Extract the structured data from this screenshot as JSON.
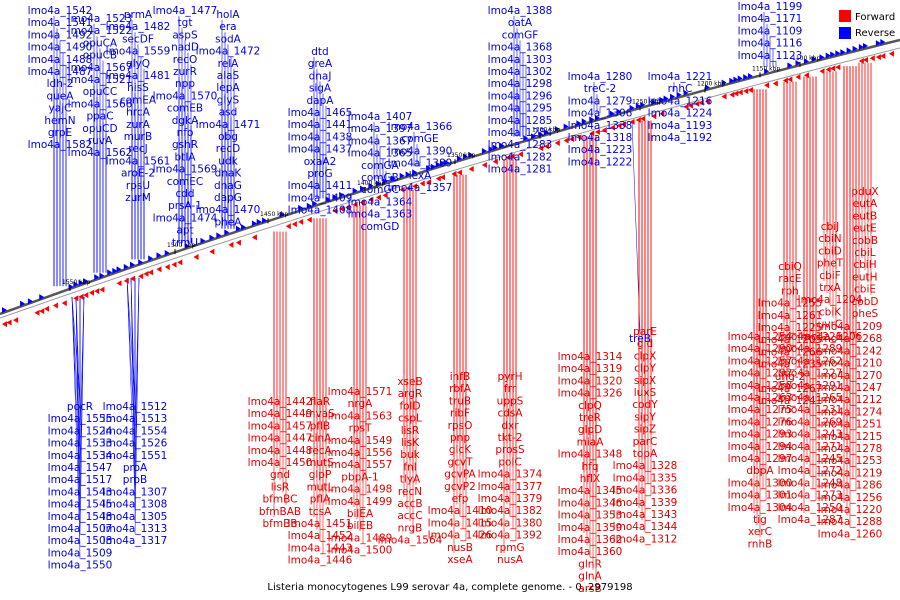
{
  "caption": "Listeria monocytogenes L99 serovar 4a, complete genome. - 0..2979198",
  "legend": {
    "forward_label": "Forward",
    "reverse_label": "Reverse",
    "forward_color": "#ff0000",
    "reverse_color": "#0000ff"
  },
  "colors": {
    "backbone": "#555555",
    "tick": "#000000"
  },
  "ticks": [
    "1100 kbp",
    "1150 kbp",
    "1200 kbp",
    "1250 kbp",
    "1300 kbp",
    "1350 kbp",
    "1400 kbp",
    "1450 kbp",
    "1500 kbp",
    "1550 kbp"
  ],
  "reverse_labels": [
    "lmo4a_1542",
    "lmo4a_1541",
    "lmo4a_1492",
    "lmo4a_1490",
    "lmo4a_1488",
    "lmo4a_1487",
    "ldh-2",
    "queA",
    "yajC",
    "hemN",
    "grpE",
    "lmo4a_1582",
    "lmo4a_1523",
    "lmo4a_1522",
    "opuCA",
    "opuCB",
    "lmo4a_1567",
    "lmo4a_1521",
    "opuCC",
    "lmo4a_1566",
    "ppaC",
    "opuCD",
    "ruvA",
    "lmo4a_1562",
    "prmA",
    "lmo4a_1482",
    "secDF",
    "lmo4a_1559",
    "glyQ",
    "lmo4a_1481",
    "hisS",
    "comEA",
    "hrcA",
    "zurA",
    "murB",
    "recJ",
    "lmo4a_1561",
    "aroE-2",
    "rpsU",
    "zurM",
    "lmo4a_1477",
    "tgt",
    "aspS",
    "nadD",
    "recO",
    "zurR",
    "npp",
    "lmo4a_1570",
    "comEB",
    "dgkA",
    "nfo",
    "gshR",
    "btlA",
    "lmo4a_1569",
    "comEC",
    "cdd",
    "prsA-1",
    "lmo4a_1474",
    "apt",
    "trmU",
    "holA",
    "era",
    "sodA",
    "lmo4a_1472",
    "relA",
    "alaS",
    "lepA",
    "glyS",
    "asd",
    "lmo4a_1471",
    "obg",
    "recD",
    "udk",
    "dnaK",
    "dnaG",
    "dapG",
    "lmo4a_1470",
    "pheA",
    "dtd",
    "greA",
    "dnaJ",
    "sigA",
    "dapA",
    "lmo4a_1465",
    "lmo4a_1441",
    "lmo4a_1438",
    "lmo4a_1437",
    "oxaA2",
    "proG",
    "lmo4a_1411",
    "lmo4a_1409",
    "lmo4a_1408",
    "lmo4a_1407",
    "lmo4a_1397",
    "lmo4a_1367",
    "lmo4a_1365",
    "comGA",
    "comGB",
    "comGC",
    "lmo4a_1364",
    "lmo4a_1363",
    "comGD",
    "lmo4a_1366",
    "comGE",
    "lmo4a_1390",
    "lmo4a_1389",
    "lexA",
    "lmo4a_1357",
    "lmo4a_1388",
    "oatA",
    "comGF",
    "lmo4a_1368",
    "lmo4a_1303",
    "lmo4a_1302",
    "lmo4a_1298",
    "lmo4a_1296",
    "lmo4a_1295",
    "lmo4a_1285",
    "lmo4a_1284",
    "lmo4a_1283",
    "lmo4a_1282",
    "lmo4a_1281",
    "lmo4a_1280",
    "treC-2",
    "lmo4a_1279",
    "lmo4a_1306",
    "lmo4a_1338",
    "lmo4a_1318",
    "lmo4a_1223",
    "lmo4a_1222",
    "lmo4a_1221",
    "rnhC",
    "lmo4a_1216",
    "lmo4a_1224",
    "lmo4a_1193",
    "lmo4a_1192",
    "lmo4a_1199",
    "lmo4a_1171",
    "lmo4a_1109",
    "lmo4a_1116",
    "lmo4a_1123",
    "pocR",
    "lmo4a_1555",
    "lmo4a_1524",
    "lmo4a_1533",
    "lmo4a_1534",
    "lmo4a_1547",
    "lmo4a_1517",
    "lmo4a_1543",
    "lmo4a_1545",
    "lmo4a_1548",
    "lmo4a_1507",
    "lmo4a_1508",
    "lmo4a_1509",
    "lmo4a_1550",
    "lmo4a_1512",
    "lmo4a_1513",
    "lmo4a_1554",
    "lmo4a_1526",
    "lmo4a_1551",
    "proA",
    "proB",
    "lmo4a_1307",
    "lmo4a_1308",
    "lmo4a_1305",
    "lmo4a_1313",
    "lmo4a_1317",
    "treB"
  ],
  "forward_labels": [
    "pduX",
    "eutA",
    "eutB",
    "eutE",
    "cobB",
    "cbiL",
    "cbiH",
    "eutH",
    "cbiE",
    "cobD",
    "pheS",
    "cbiJ",
    "cbiN",
    "cbiD",
    "pheT",
    "cbiF",
    "trxA",
    "lmo4a_1204",
    "cbiK",
    "uvrC",
    "lmo4a_1206",
    "cbiQ",
    "racE",
    "rph",
    "lmo4a_1255",
    "lmo4a_1261",
    "lmo4a_1225",
    "lmo4a_1205",
    "lmo4a_1266",
    "lmo4a_1235",
    "ung-2",
    "lmo4a_1267",
    "lmo4a_1241",
    "lmo4a_1209",
    "lmo4a_1268",
    "lmo4a_1242",
    "lmo4a_1210",
    "lmo4a_1270",
    "lmo4a_1247",
    "lmo4a_1212",
    "lmo4a_1274",
    "lmo4a_1251",
    "lmo4a_1215",
    "lmo4a_1278",
    "lmo4a_1253",
    "lmo4a_1219",
    "lmo4a_1286",
    "lmo4a_1256",
    "lmo4a_1220",
    "lmo4a_1288",
    "lmo4a_1260",
    "lmo4a_1226",
    "lmo4a_1289",
    "lmo4a_1262",
    "lmo4a_1227",
    "lmo4a_1291",
    "lmo4a_1265",
    "lmo4a_1231",
    "lmo4a_1269",
    "lmo4a_1243",
    "lmo4a_1271",
    "lmo4a_1245",
    "lmo4a_1272",
    "lmo4a_1248",
    "lmo4a_1273",
    "lmo4a_1250",
    "lmo4a_1287",
    "lmo4a_1254",
    "lmo4a_1290",
    "lmo4a_1257",
    "lmo4a_1292",
    "lmo4a_1258",
    "lmo4a_1263",
    "lmo4a_1275",
    "lmo4a_1276",
    "lmo4a_1293",
    "lmo4a_1294",
    "lmo4a_1297",
    "dbpA",
    "lmo4a_1300",
    "lmo4a_1301",
    "lmo4a_1304",
    "tig",
    "xerC",
    "rnhB",
    "parE",
    "gid",
    "clpX",
    "clpY",
    "sipX",
    "luxS",
    "codY",
    "sipY",
    "sipZ",
    "parC",
    "topA",
    "lmo4a_1328",
    "lmo4a_1335",
    "lmo4a_1336",
    "lmo4a_1339",
    "lmo4a_1343",
    "lmo4a_1344",
    "lmo4a_1312",
    "lmo4a_1314",
    "lmo4a_1319",
    "lmo4a_1320",
    "lmo4a_1326",
    "clpQ",
    "treR",
    "glpD",
    "miaA",
    "lmo4a_1348",
    "hfq",
    "hflX",
    "lmo4a_1345",
    "lmo4a_1346",
    "lmo4a_1353",
    "lmo4a_1359",
    "lmo4a_1362",
    "lmo4a_1360",
    "glnR",
    "glnA",
    "arsB",
    "pyrH",
    "frr",
    "uppS",
    "cdsA",
    "dxr",
    "tkt-2",
    "prosS",
    "polC",
    "lmo4a_1374",
    "lmo4a_1377",
    "lmo4a_1379",
    "lmo4a_1382",
    "lmo4a_1380",
    "lmo4a_1392",
    "rpmG",
    "nusA",
    "infB",
    "rbfA",
    "truB",
    "ribF",
    "rpsO",
    "pnp",
    "glcK",
    "gcvT",
    "gcvPA",
    "gcvP2",
    "efp",
    "lmo4a_1410",
    "lmo4a_1415",
    "lmo4a_1426",
    "nusB",
    "xseA",
    "xseB",
    "argR",
    "folD",
    "cspL",
    "lisR",
    "lisK",
    "buk",
    "fnl",
    "tlyA",
    "recN",
    "accB",
    "accC",
    "nrgB",
    "lmo4a_1564",
    "lmo4a_1571",
    "nrgA",
    "lmo4a_1563",
    "rpsT",
    "lmo4a_1549",
    "lmo4a_1556",
    "lmo4a_1557",
    "pbpA-1",
    "lmo4a_1498",
    "lmo4a_1499",
    "bilEA",
    "bilEB",
    "lmo4a_1489",
    "lmo4a_1500",
    "flaR",
    "mvaS",
    "pflB",
    "cinA",
    "recA",
    "mutS",
    "glpP",
    "mutL",
    "pflA",
    "tcsA",
    "lmo4a_1451",
    "lmo4a_1452",
    "lmo4a_1443",
    "lmo4a_1446",
    "lmo4a_1442",
    "lmo4a_1449",
    "lmo4a_1457",
    "lmo4a_1447",
    "lmo4a_1448",
    "lmo4a_1450",
    "gnd",
    "lisR",
    "bfmBC",
    "bfmBAB",
    "bfmBB"
  ],
  "note_on_labels": "Text is very small in the screenshot; most gene names are best-effort readings."
}
